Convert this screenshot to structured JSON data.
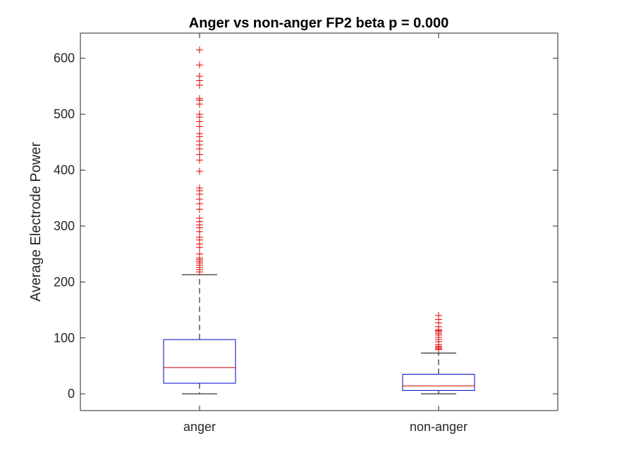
{
  "chart_data": {
    "type": "box",
    "title": "Anger vs non-anger FP2 beta p = 0.000",
    "xlabel": "",
    "ylabel": "Average Electrode Power",
    "ylim": [
      -30,
      645
    ],
    "yticks": [
      0,
      100,
      200,
      300,
      400,
      500,
      600
    ],
    "grid": false,
    "categories": [
      "anger",
      "non-anger"
    ],
    "boxes": [
      {
        "category": "anger",
        "min": 0,
        "q1": 19,
        "median": 47,
        "q3": 97,
        "max": 213,
        "outliers": [
          218,
          222,
          226,
          230,
          234,
          237,
          240,
          243,
          250,
          262,
          268,
          275,
          280,
          290,
          297,
          302,
          308,
          314,
          330,
          340,
          348,
          357,
          363,
          368,
          398,
          418,
          428,
          438,
          445,
          452,
          460,
          465,
          478,
          487,
          495,
          500,
          518,
          525,
          528,
          552,
          560,
          568,
          588,
          615
        ]
      },
      {
        "category": "non-anger",
        "min": 0,
        "q1": 6,
        "median": 14,
        "q3": 35,
        "max": 73,
        "outliers": [
          79,
          81,
          83,
          85,
          88,
          93,
          97,
          101,
          105,
          108,
          111,
          113,
          115,
          120,
          127,
          133,
          140
        ]
      }
    ],
    "colors": {
      "box": "#0000cc",
      "median": "#cc0000",
      "outlier": "#e00000",
      "whisker": "#000000",
      "axis": "#262626"
    }
  }
}
